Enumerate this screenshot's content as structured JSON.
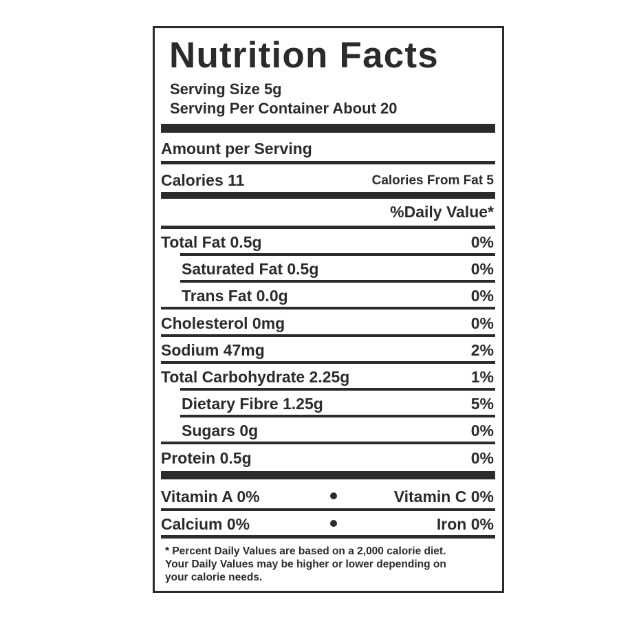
{
  "label": {
    "title": "Nutrition Facts",
    "serving_size": "Serving Size 5g",
    "servings_per_container": "Serving Per Container About 20",
    "amount_per_serving": "Amount per Serving",
    "calories": "Calories 11",
    "calories_from_fat": "Calories From Fat 5",
    "daily_value_header": "%Daily Value*",
    "nutrients": [
      {
        "label": "Total Fat 0.5g",
        "daily_value": "0%"
      },
      {
        "label": "Saturated Fat 0.5g",
        "daily_value": "0%"
      },
      {
        "label": "Trans Fat 0.0g",
        "daily_value": "0%"
      },
      {
        "label": "Cholesterol 0mg",
        "daily_value": "0%"
      },
      {
        "label": "Sodium 47mg",
        "daily_value": "2%"
      },
      {
        "label": "Total Carbohydrate 2.25g",
        "daily_value": "1%"
      },
      {
        "label": "Dietary Fibre 1.25g",
        "daily_value": "5%"
      },
      {
        "label": "Sugars 0g",
        "daily_value": "0%"
      },
      {
        "label": "Protein 0.5g",
        "daily_value": "0%"
      }
    ],
    "vitamins": [
      [
        "Vitamin A 0%",
        "Vitamin C 0%"
      ],
      [
        "Calcium 0%",
        "Iron 0%"
      ]
    ],
    "footnote": [
      "* Percent Daily Values are based on a 2,000 calorie diet.",
      "Your Daily Values may be higher or lower depending on",
      "your calorie needs."
    ]
  }
}
